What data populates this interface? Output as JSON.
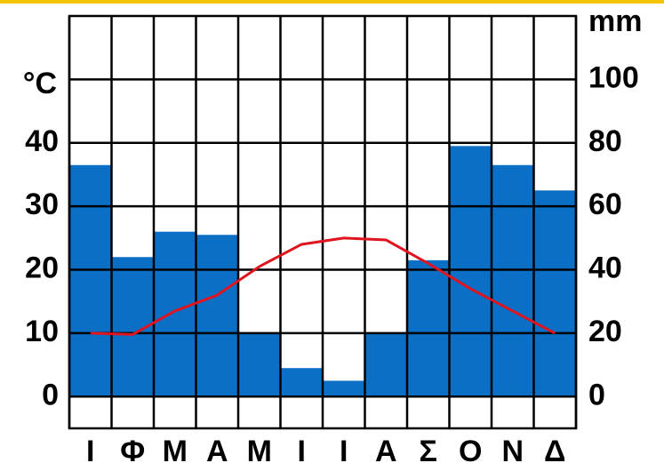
{
  "chart_data": {
    "type": "climograph",
    "categories": [
      "Ι",
      "Φ",
      "Μ",
      "Α",
      "Μ",
      "Ι",
      "Ι",
      "Α",
      "Σ",
      "Ο",
      "Ν",
      "Δ"
    ],
    "ylabel": "°C",
    "y2label": "mm",
    "ylim": [
      -5,
      60
    ],
    "yticks": [
      0,
      10,
      20,
      30,
      40
    ],
    "y2lim": [
      -10,
      120
    ],
    "y2ticks": [
      0,
      20,
      40,
      60,
      80,
      100
    ],
    "grid_lines": [
      0,
      10,
      20,
      30,
      40,
      50
    ],
    "series": [
      {
        "type": "bar",
        "axis": "y2",
        "color": "#0b6fc6",
        "values": [
          73,
          44,
          52,
          51,
          20,
          9,
          5,
          20,
          43,
          79,
          73,
          65
        ]
      },
      {
        "type": "line",
        "axis": "y",
        "color": "#e0141e",
        "values": [
          10,
          9.8,
          13.5,
          16,
          20.5,
          24,
          25,
          24.7,
          21,
          17,
          13.5,
          10
        ]
      }
    ]
  }
}
